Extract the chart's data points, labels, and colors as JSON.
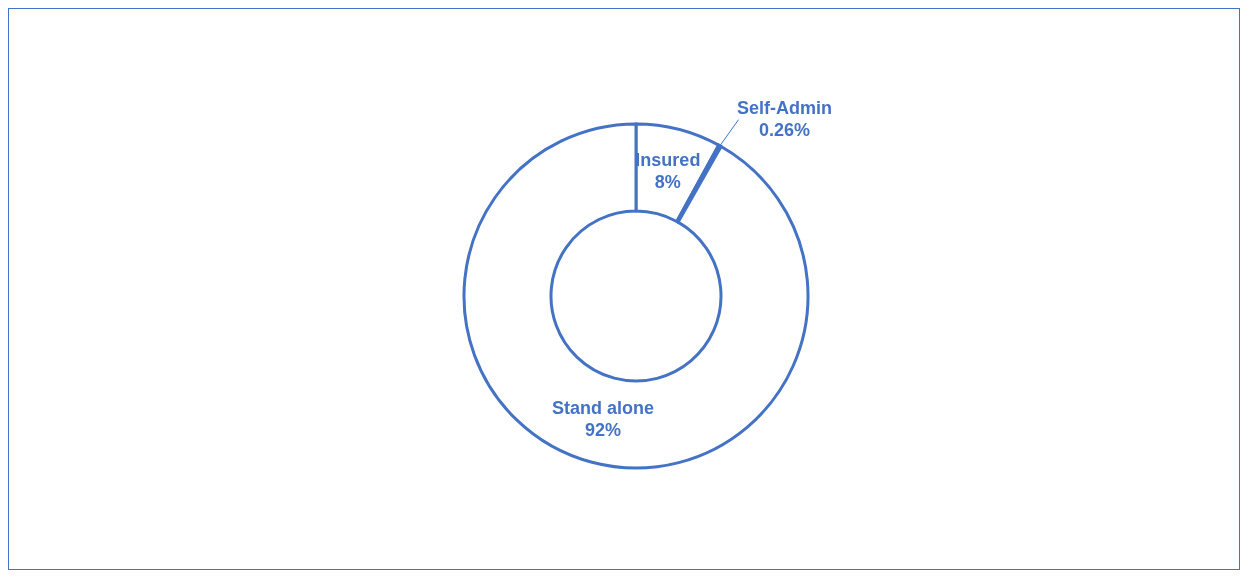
{
  "chart_data": {
    "type": "donut",
    "categories": [
      "Insured",
      "Self-Admin",
      "Stand alone"
    ],
    "values": [
      8,
      0.26,
      92
    ],
    "value_labels": [
      "8%",
      "0.26%",
      "92%"
    ],
    "colors": [
      "#4472c4",
      "#4472c4",
      "#4472c4"
    ]
  }
}
